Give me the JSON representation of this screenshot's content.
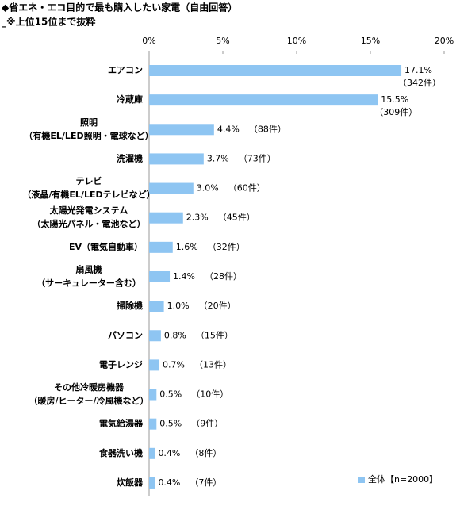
{
  "chart_data": {
    "type": "bar",
    "orientation": "horizontal",
    "title": "◆省エネ・エコ目的で最も購入したい家電（自由回答）",
    "subtitle": "_※上位15位まで抜粋",
    "categories": [
      [
        "エアコン"
      ],
      [
        "冷蔵庫"
      ],
      [
        "照明",
        "（有機EL/LED照明・電球など）"
      ],
      [
        "洗濯機"
      ],
      [
        "テレビ",
        "（液晶/有機EL/LEDテレビなど）"
      ],
      [
        "太陽光発電システム",
        "（太陽光パネル・電池など）"
      ],
      [
        "EV（電気自動車）"
      ],
      [
        "扇風機",
        "（サーキュレーター含む）"
      ],
      [
        "掃除機"
      ],
      [
        "パソコン"
      ],
      [
        "電子レンジ"
      ],
      [
        "その他冷暖房機器",
        "（暖房/ヒーター/冷風機など）"
      ],
      [
        "電気給湯器"
      ],
      [
        "食器洗い機"
      ],
      [
        "炊飯器"
      ]
    ],
    "series": [
      {
        "name": "全体【n=2000】",
        "color": "#8ec5f2",
        "values": [
          17.1,
          15.5,
          4.4,
          3.7,
          3.0,
          2.3,
          1.6,
          1.4,
          1.0,
          0.8,
          0.7,
          0.5,
          0.5,
          0.4,
          0.4
        ],
        "value_labels": [
          "17.1%",
          "15.5%",
          "4.4%",
          "3.7%",
          "3.0%",
          "2.3%",
          "1.6%",
          "1.4%",
          "1.0%",
          "0.8%",
          "0.7%",
          "0.5%",
          "0.5%",
          "0.4%",
          "0.4%"
        ],
        "count_labels": [
          "（342件）",
          "（309件）",
          "（88件）",
          "（73件）",
          "（60件）",
          "（45件）",
          "（32件）",
          "（28件）",
          "（20件）",
          "（15件）",
          "（13件）",
          "（10件）",
          "（9件）",
          "（8件）",
          "（7件）"
        ]
      }
    ],
    "xlim": [
      0,
      20
    ],
    "xticks": [
      {
        "value": 0,
        "label": "0%"
      },
      {
        "value": 5,
        "label": "5%"
      },
      {
        "value": 10,
        "label": "10%"
      },
      {
        "value": 15,
        "label": "15%"
      },
      {
        "value": 20,
        "label": "20%"
      }
    ],
    "grid": false,
    "legend": "bottom-right"
  }
}
